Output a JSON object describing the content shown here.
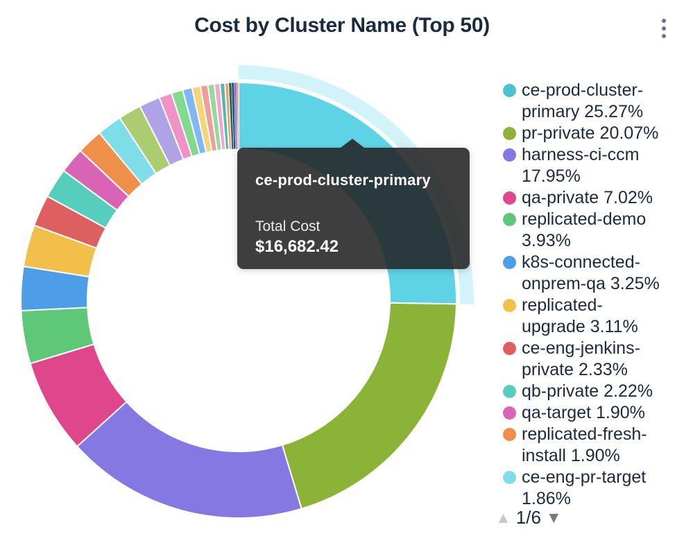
{
  "header": {
    "title": "Cost by Cluster Name (Top 50)"
  },
  "tooltip": {
    "title": "ce-prod-cluster-primary",
    "label": "Total Cost",
    "value": "$16,682.42"
  },
  "legend_pagination": {
    "prev": "▲",
    "current_page": "1/6",
    "next": "▼"
  },
  "chart_data": {
    "type": "pie",
    "subtype": "donut",
    "title": "Cost by Cluster Name (Top 50)",
    "legend_position": "right",
    "legend_current_page": "1/6",
    "direction": "clockwise",
    "start_angle_deg": 0,
    "highlighted_slice": "ce-prod-cluster-primary",
    "highlighted_slice_total_cost": "$16,682.42",
    "slices": [
      {
        "name": "ce-prod-cluster-primary",
        "pct": 25.27,
        "color": "#5fd3e6",
        "legend_color": "#4cc1cf"
      },
      {
        "name": "pr-private",
        "pct": 20.07,
        "color": "#8bb337"
      },
      {
        "name": "harness-ci-ccm",
        "pct": 17.95,
        "color": "#8678e2"
      },
      {
        "name": "qa-private",
        "pct": 7.02,
        "color": "#e0468c"
      },
      {
        "name": "replicated-demo",
        "pct": 3.93,
        "color": "#5fc878"
      },
      {
        "name": "k8s-connected-onprem-qa",
        "pct": 3.25,
        "color": "#4d9ee6"
      },
      {
        "name": "replicated-upgrade",
        "pct": 3.11,
        "color": "#f2c04a"
      },
      {
        "name": "ce-eng-jenkins-private",
        "pct": 2.33,
        "color": "#dd5f5f"
      },
      {
        "name": "qb-private",
        "pct": 2.22,
        "color": "#57cdbd"
      },
      {
        "name": "qa-target",
        "pct": 1.9,
        "color": "#d963b5"
      },
      {
        "name": "replicated-fresh-install",
        "pct": 1.9,
        "color": "#ee9049"
      },
      {
        "name": "ce-eng-pr-target",
        "pct": 1.86,
        "color": "#7edde7"
      }
    ],
    "unlabeled_tail_slices": [
      {
        "pct": 1.7,
        "color": "#abcd6f"
      },
      {
        "pct": 1.55,
        "color": "#afa3e8"
      },
      {
        "pct": 0.95,
        "color": "#ef93c6"
      },
      {
        "pct": 0.85,
        "color": "#82da8e"
      },
      {
        "pct": 0.7,
        "color": "#7fb8f2"
      },
      {
        "pct": 0.62,
        "color": "#f6d57a"
      },
      {
        "pct": 0.55,
        "color": "#ef9f9a"
      },
      {
        "pct": 0.48,
        "color": "#95da9b"
      },
      {
        "pct": 0.42,
        "color": "#f2a6cf"
      },
      {
        "pct": 0.36,
        "color": "#52b8ac"
      },
      {
        "pct": 0.28,
        "color": "#ee9c5b"
      },
      {
        "pct": 0.22,
        "color": "#1e6f6a"
      },
      {
        "pct": 0.18,
        "color": "#2c3e70"
      },
      {
        "pct": 0.14,
        "color": "#7a5fd0"
      },
      {
        "pct": 0.1,
        "color": "#c94f9e"
      },
      {
        "pct": 0.09,
        "color": "#ef8f4a"
      }
    ]
  }
}
